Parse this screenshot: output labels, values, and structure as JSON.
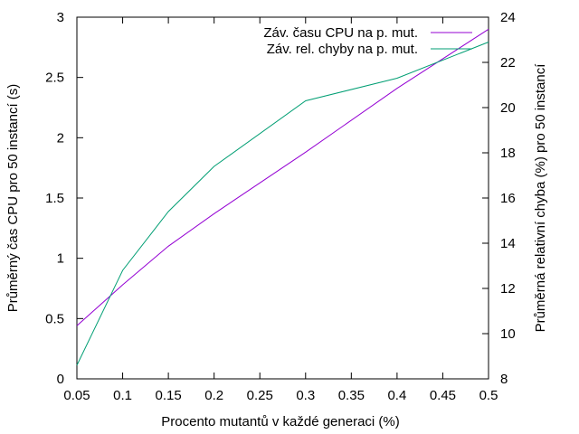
{
  "chart_data": {
    "type": "line",
    "title": "",
    "xlabel": "Procento mutantů v každé generaci (%)",
    "ylabel_left": "Průměrný čas CPU pro 50 instancí (s)",
    "ylabel_right": "Průměrná relativní chyba (%) pro 50 instancí",
    "xlim": [
      0.05,
      0.5
    ],
    "ylim_left": [
      0,
      3
    ],
    "ylim_right": [
      8,
      24
    ],
    "x_ticks": [
      "0.05",
      "0.1",
      "0.15",
      "0.2",
      "0.25",
      "0.3",
      "0.35",
      "0.4",
      "0.45",
      "0.5"
    ],
    "y_ticks_left": [
      "0",
      "0.5",
      "1",
      "1.5",
      "2",
      "2.5",
      "3"
    ],
    "y_ticks_right": [
      "8",
      "10",
      "12",
      "14",
      "16",
      "18",
      "20",
      "22",
      "24"
    ],
    "grid": false,
    "legend_position": "top-right",
    "series": [
      {
        "name": "Záv. času CPU na p. mut.",
        "axis": "left",
        "color": "#9400d3",
        "x": [
          0.05,
          0.1,
          0.15,
          0.2,
          0.3,
          0.4,
          0.5
        ],
        "y": [
          0.44,
          0.78,
          1.1,
          1.37,
          1.88,
          2.41,
          2.9
        ]
      },
      {
        "name": "Záv. rel. chyby na p. mut.",
        "axis": "right",
        "color": "#009e73",
        "x": [
          0.05,
          0.1,
          0.15,
          0.2,
          0.3,
          0.4,
          0.5
        ],
        "y": [
          8.6,
          12.8,
          15.4,
          17.4,
          20.3,
          21.3,
          22.9
        ]
      }
    ]
  }
}
